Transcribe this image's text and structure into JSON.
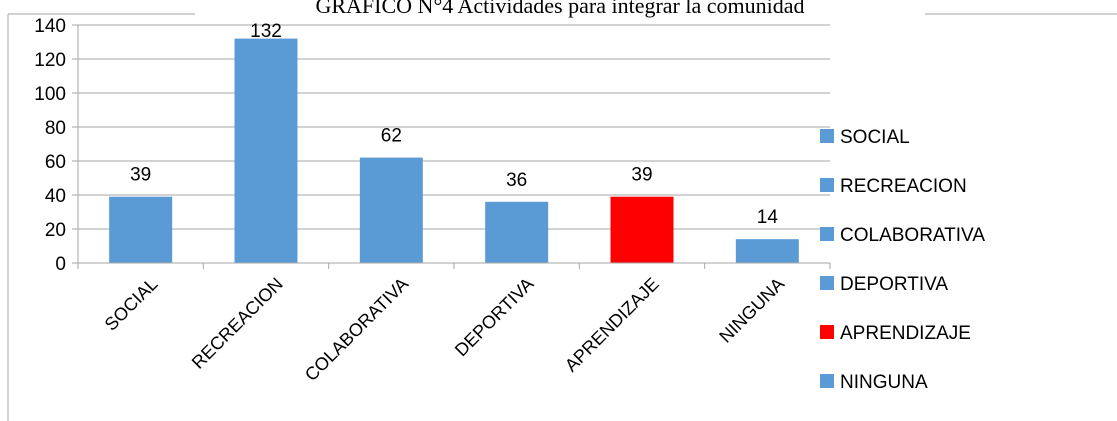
{
  "chart_data": {
    "type": "bar",
    "title": "GRAFICO N°4 Actividades para integrar la comunidad",
    "xlabel": "",
    "ylabel": "",
    "categories": [
      "SOCIAL",
      "RECREACION",
      "COLABORATIVA",
      "DEPORTIVA",
      "APRENDIZAJE",
      "NINGUNA"
    ],
    "values": [
      39,
      132,
      62,
      36,
      39,
      14
    ],
    "data_labels": [
      "39",
      "132",
      "62",
      "36",
      "39",
      "14"
    ],
    "colors": [
      "#5B9BD5",
      "#5B9BD5",
      "#5B9BD5",
      "#5B9BD5",
      "#FF0000",
      "#5B9BD5"
    ],
    "ylim": [
      0,
      140
    ],
    "yticks": [
      0,
      20,
      40,
      60,
      80,
      100,
      120,
      140
    ],
    "ytick_labels": [
      "0",
      "20",
      "40",
      "60",
      "80",
      "100",
      "120",
      "140"
    ],
    "grid": true,
    "legend_position": "right",
    "legend": [
      {
        "label": "SOCIAL",
        "color": "#5B9BD5"
      },
      {
        "label": "RECREACION",
        "color": "#5B9BD5"
      },
      {
        "label": "COLABORATIVA",
        "color": "#5B9BD5"
      },
      {
        "label": "DEPORTIVA",
        "color": "#5B9BD5"
      },
      {
        "label": "APRENDIZAJE",
        "color": "#FF0000"
      },
      {
        "label": "NINGUNA",
        "color": "#5B9BD5"
      }
    ]
  }
}
